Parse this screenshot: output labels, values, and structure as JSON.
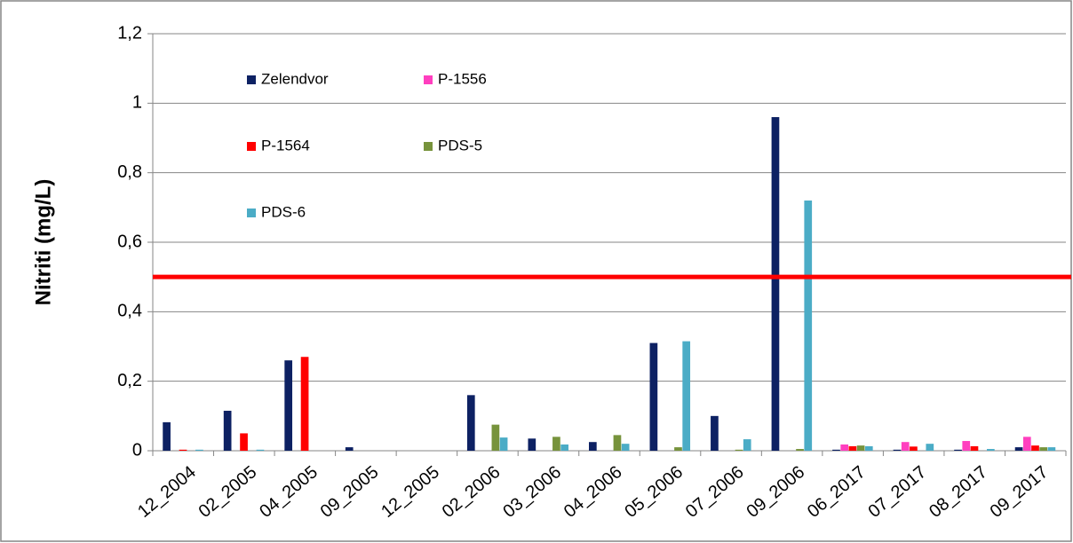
{
  "chart_data": {
    "type": "bar",
    "y_label": "Nitriti (mg/L)",
    "categories": [
      "12_2004",
      "02_2005",
      "04_2005",
      "09_2005",
      "12_2005",
      "02_2006",
      "03_2006",
      "04_2006",
      "05_2006",
      "07_2006",
      "09_2006",
      "06_2017",
      "07_2017",
      "08_2017",
      "09_2017"
    ],
    "series": [
      {
        "name": "Zelendvor",
        "color": "#0d2163",
        "values": [
          0.082,
          0.115,
          0.26,
          0.01,
          null,
          0.16,
          0.035,
          0.025,
          0.31,
          0.1,
          0.96,
          0.003,
          0.003,
          0.003,
          0.01
        ]
      },
      {
        "name": "P-1556",
        "color": "#ff3fbf",
        "values": [
          null,
          null,
          null,
          null,
          null,
          null,
          null,
          null,
          null,
          null,
          null,
          0.018,
          0.025,
          0.028,
          0.04
        ]
      },
      {
        "name": "P-1564",
        "color": "#ff0000",
        "values": [
          0.003,
          0.05,
          0.27,
          null,
          null,
          null,
          null,
          null,
          null,
          null,
          null,
          0.013,
          0.012,
          0.013,
          0.015
        ]
      },
      {
        "name": "PDS-5",
        "color": "#77933c",
        "values": [
          null,
          null,
          null,
          null,
          null,
          0.075,
          0.04,
          0.045,
          0.01,
          0.003,
          0.005,
          0.015,
          null,
          null,
          0.01
        ]
      },
      {
        "name": "PDS-6",
        "color": "#4bacc6",
        "values": [
          0.003,
          0.003,
          null,
          null,
          null,
          0.038,
          0.018,
          0.02,
          0.315,
          0.033,
          0.72,
          0.013,
          0.02,
          0.005,
          0.01
        ]
      }
    ],
    "threshold": {
      "value": 0.5,
      "color": "#ff0000"
    },
    "ylim": [
      0,
      1.2
    ],
    "yticks": [
      0,
      {
        "value": 0.2,
        "label": "0,2"
      },
      {
        "value": 0.4,
        "label": "0,4"
      },
      {
        "value": 0.6,
        "label": "0,6"
      },
      {
        "value": 0.8,
        "label": "0,8"
      },
      1,
      {
        "value": 1.2,
        "label": "1,2"
      }
    ],
    "grid": true
  }
}
